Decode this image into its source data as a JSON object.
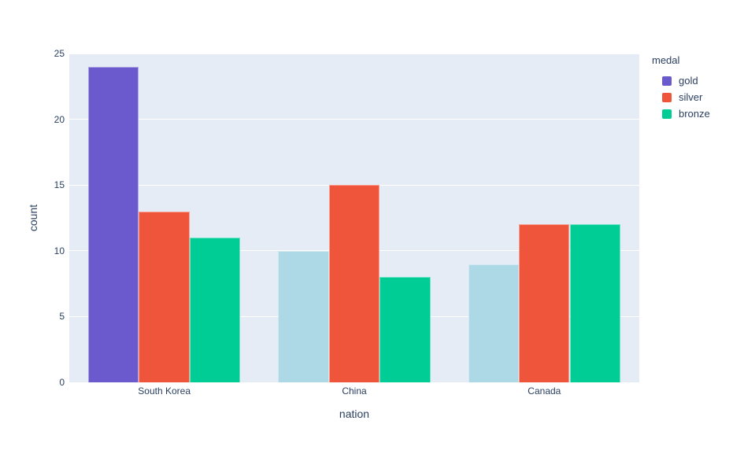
{
  "chart_data": {
    "type": "bar",
    "title": "",
    "xlabel": "nation",
    "ylabel": "count",
    "categories": [
      "South Korea",
      "China",
      "Canada"
    ],
    "series": [
      {
        "name": "gold",
        "values": [
          24,
          10,
          9
        ],
        "colors": [
          "#6A5ACD",
          "#ADD8E6",
          "#ADD8E6"
        ],
        "legend_color": "#6A5ACD"
      },
      {
        "name": "silver",
        "values": [
          13,
          15,
          12
        ],
        "color": "#EF553B"
      },
      {
        "name": "bronze",
        "values": [
          11,
          8,
          12
        ],
        "color": "#00CC96"
      }
    ],
    "ylim": [
      0,
      25
    ],
    "yticks": [
      0,
      5,
      10,
      15,
      20,
      25
    ],
    "grid": true,
    "legend": {
      "title": "medal",
      "position": "right"
    },
    "colors": {
      "plot_background": "#E5ECF6",
      "gridline": "#FFFFFF",
      "text": "#2A3F5F"
    }
  }
}
